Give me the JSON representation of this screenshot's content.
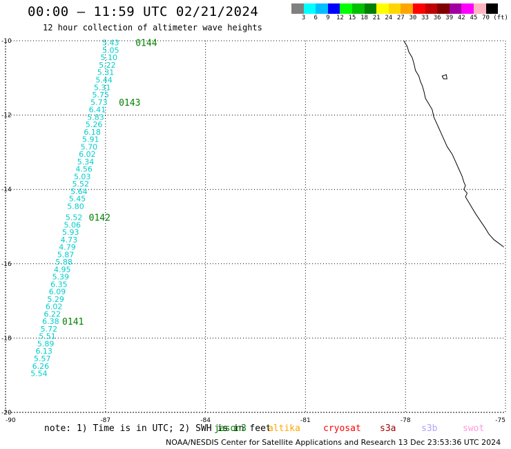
{
  "header": {
    "title": "00:00 – 11:59 UTC 02/21/2024",
    "subtitle": "12 hour collection of altimeter wave heights"
  },
  "colorbar": {
    "colors": [
      "#808080",
      "#00ffff",
      "#00bfff",
      "#0000ff",
      "#00ff00",
      "#00c000",
      "#008000",
      "#ffff00",
      "#ffd700",
      "#ffa500",
      "#ff0000",
      "#c00000",
      "#800000",
      "#a000a0",
      "#ff00ff",
      "#ffb6c1",
      "#000000"
    ],
    "labels": [
      "3",
      "6",
      "9",
      "12",
      "15",
      "18",
      "21",
      "24",
      "27",
      "30",
      "33",
      "36",
      "39",
      "42",
      "45",
      "70"
    ],
    "unit": "(ft)"
  },
  "map": {
    "lon_range": [
      -90,
      -75
    ],
    "lat_range": [
      -20,
      -10
    ],
    "x_ticks": [
      "-90",
      "-87",
      "-84",
      "-81",
      "-78",
      "-75"
    ],
    "y_ticks": [
      "-10",
      "-12",
      "-14",
      "-16",
      "-18",
      "-20"
    ],
    "track_color": "#00cccc",
    "pass_label_color": "#008000",
    "coast_color": "#000000",
    "grid_color": "#000000"
  },
  "track_values": [
    {
      "lon": -87.1,
      "lat": -10.05,
      "v": "5.43"
    },
    {
      "lon": -87.1,
      "lat": -10.25,
      "v": "5.05"
    },
    {
      "lon": -87.15,
      "lat": -10.45,
      "v": "5.10"
    },
    {
      "lon": -87.2,
      "lat": -10.65,
      "v": "5.22"
    },
    {
      "lon": -87.25,
      "lat": -10.85,
      "v": "5.31"
    },
    {
      "lon": -87.3,
      "lat": -11.05,
      "v": "5.44"
    },
    {
      "lon": -87.35,
      "lat": -11.25,
      "v": "5.31"
    },
    {
      "lon": -87.4,
      "lat": -11.45,
      "v": "5.75"
    },
    {
      "lon": -87.45,
      "lat": -11.65,
      "v": "5.73"
    },
    {
      "lon": -87.5,
      "lat": -11.85,
      "v": "6.41"
    },
    {
      "lon": -87.55,
      "lat": -12.05,
      "v": "5.83"
    },
    {
      "lon": -87.6,
      "lat": -12.25,
      "v": "5.26"
    },
    {
      "lon": -87.65,
      "lat": -12.45,
      "v": "6.18"
    },
    {
      "lon": -87.7,
      "lat": -12.65,
      "v": "5.91"
    },
    {
      "lon": -87.75,
      "lat": -12.85,
      "v": "5.70"
    },
    {
      "lon": -87.8,
      "lat": -13.05,
      "v": "6.02"
    },
    {
      "lon": -87.85,
      "lat": -13.25,
      "v": "5.34"
    },
    {
      "lon": -87.9,
      "lat": -13.45,
      "v": "4.56"
    },
    {
      "lon": -87.95,
      "lat": -13.65,
      "v": "5.03"
    },
    {
      "lon": -88.0,
      "lat": -13.85,
      "v": "5.52"
    },
    {
      "lon": -88.05,
      "lat": -14.05,
      "v": "5.64"
    },
    {
      "lon": -88.1,
      "lat": -14.25,
      "v": "5.45"
    },
    {
      "lon": -88.15,
      "lat": -14.45,
      "v": "5.80"
    },
    {
      "lon": -88.2,
      "lat": -14.75,
      "v": "5.52"
    },
    {
      "lon": -88.25,
      "lat": -14.95,
      "v": "5.06"
    },
    {
      "lon": -88.3,
      "lat": -15.15,
      "v": "5.93"
    },
    {
      "lon": -88.35,
      "lat": -15.35,
      "v": "4.73"
    },
    {
      "lon": -88.4,
      "lat": -15.55,
      "v": "4.79"
    },
    {
      "lon": -88.45,
      "lat": -15.75,
      "v": "5.87"
    },
    {
      "lon": -88.5,
      "lat": -15.95,
      "v": "5.88"
    },
    {
      "lon": -88.55,
      "lat": -16.15,
      "v": "4.95"
    },
    {
      "lon": -88.6,
      "lat": -16.35,
      "v": "5.39"
    },
    {
      "lon": -88.65,
      "lat": -16.55,
      "v": "6.35"
    },
    {
      "lon": -88.7,
      "lat": -16.75,
      "v": "6.09"
    },
    {
      "lon": -88.75,
      "lat": -16.95,
      "v": "5.29"
    },
    {
      "lon": -88.8,
      "lat": -17.15,
      "v": "6.02"
    },
    {
      "lon": -88.85,
      "lat": -17.35,
      "v": "6.22"
    },
    {
      "lon": -88.9,
      "lat": -17.55,
      "v": "6.38"
    },
    {
      "lon": -88.95,
      "lat": -17.75,
      "v": "5.72"
    },
    {
      "lon": -89.0,
      "lat": -17.95,
      "v": "5.51"
    },
    {
      "lon": -89.05,
      "lat": -18.15,
      "v": "5.89"
    },
    {
      "lon": -89.1,
      "lat": -18.35,
      "v": "6.13"
    },
    {
      "lon": -89.15,
      "lat": -18.55,
      "v": "5.57"
    },
    {
      "lon": -89.2,
      "lat": -18.75,
      "v": "6.26"
    },
    {
      "lon": -89.25,
      "lat": -18.95,
      "v": "5.54"
    }
  ],
  "pass_labels": [
    {
      "lon": -86.1,
      "lat": -10.05,
      "text": "0144"
    },
    {
      "lon": -86.6,
      "lat": -11.65,
      "text": "0143"
    },
    {
      "lon": -87.5,
      "lat": -14.75,
      "text": "0142"
    },
    {
      "lon": -88.3,
      "lat": -17.55,
      "text": "0141"
    }
  ],
  "footer": {
    "note": "note: 1) Time is in UTC; 2) SWH is in feet",
    "satellites": [
      {
        "name": "jason3",
        "color": "#008000"
      },
      {
        "name": "altika",
        "color": "#ffa500"
      },
      {
        "name": "cryosat",
        "color": "#ff0000"
      },
      {
        "name": "s3a",
        "color": "#a00000"
      },
      {
        "name": "s3b",
        "color": "#b0a0ff"
      },
      {
        "name": "swot",
        "color": "#ff99dd"
      }
    ],
    "credit": "NOAA/NESDIS Center for Satellite Applications and Research    13 Dec 23:53:36 UTC 2024"
  }
}
